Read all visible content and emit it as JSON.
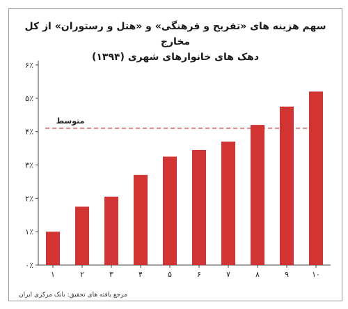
{
  "chart_data": {
    "type": "bar",
    "title": "سهم هزینه های «تفریح و فرهنگی» و «هتل و رستوران» از کل مخارج",
    "subtitle": "دهک های خانوارهای شهری (۱۳۹۴)",
    "categories": [
      "۱",
      "۲",
      "۳",
      "۴",
      "۵",
      "۶",
      "۷",
      "۸",
      "۹",
      "۱۰"
    ],
    "values": [
      1.0,
      1.75,
      2.05,
      2.7,
      3.25,
      3.45,
      3.7,
      4.2,
      4.75,
      5.2
    ],
    "ylim": [
      0,
      6
    ],
    "yticks": [
      0,
      1,
      2,
      3,
      4,
      5,
      6
    ],
    "ytick_labels": [
      "۰٪",
      "۱٪",
      "۲٪",
      "۳٪",
      "۴٪",
      "۵٪",
      "۶٪"
    ],
    "average": {
      "label": "متوسط",
      "value": 4.1
    },
    "grid": false,
    "colors": {
      "bar": "#d23333",
      "average_line": "#d23333",
      "axis": "#444444"
    }
  },
  "source": "مرجع یافته های تحقیق: بانک مرکزی ایران"
}
